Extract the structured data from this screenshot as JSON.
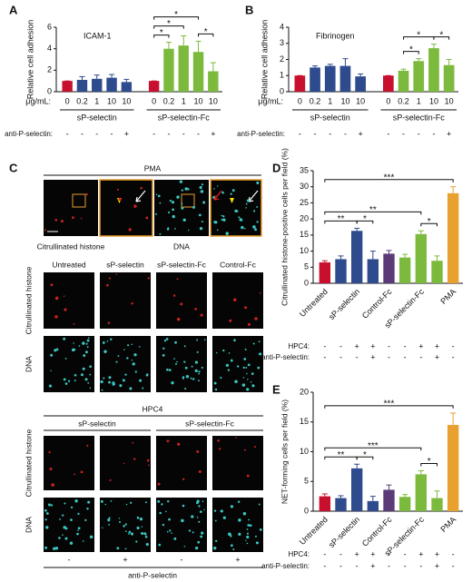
{
  "panel_labels": [
    "A",
    "B",
    "C",
    "D",
    "E"
  ],
  "chart_data": [
    {
      "type": "bar",
      "annotation": "ICAM-1",
      "y_label": "Relative cell adhesion",
      "ylim": [
        0,
        6
      ],
      "yticks": [
        0,
        2,
        4,
        6
      ],
      "category_label": "μg/mL:",
      "categories": [
        "0",
        "0.2",
        "1",
        "10",
        "10",
        "0",
        "0.2",
        "1",
        "10",
        "10"
      ],
      "values": [
        1,
        1.1,
        1.2,
        1.3,
        0.9,
        1,
        4.0,
        4.3,
        3.7,
        1.9
      ],
      "errors": [
        0,
        0.3,
        0.35,
        0.3,
        0.25,
        0,
        0.6,
        0.9,
        1.0,
        0.8
      ],
      "colors": [
        "#c8102e",
        "#2e4b8e",
        "#2e4b8e",
        "#2e4b8e",
        "#2e4b8e",
        "#c8102e",
        "#7cba3d",
        "#7cba3d",
        "#7cba3d",
        "#7cba3d"
      ],
      "groups": [
        {
          "name": "sP-selectin",
          "start": 0,
          "end": 4
        },
        {
          "name": "sP-selectin-Fc",
          "start": 5,
          "end": 9
        }
      ],
      "rows": [
        {
          "label": "anti-P-selectin:",
          "values": [
            "-",
            "-",
            "-",
            "-",
            "+",
            "-",
            "-",
            "-",
            "-",
            "+"
          ]
        }
      ],
      "significance": [
        {
          "label": "*",
          "bars": [
            5,
            6
          ]
        },
        {
          "label": "*",
          "bars": [
            5,
            7
          ]
        },
        {
          "label": "*",
          "bars": [
            5,
            8
          ]
        },
        {
          "label": "*",
          "bars": [
            8,
            9
          ]
        }
      ]
    },
    {
      "type": "bar",
      "annotation": "Fibrinogen",
      "y_label": "Relative cell adhesion",
      "ylim": [
        0,
        4
      ],
      "yticks": [
        0,
        1,
        2,
        3,
        4
      ],
      "category_label": "μg/mL:",
      "categories": [
        "0",
        "0.2",
        "1",
        "10",
        "10",
        "0",
        "0.2",
        "1",
        "10",
        "10"
      ],
      "values": [
        1,
        1.5,
        1.6,
        1.6,
        0.95,
        1,
        1.3,
        1.9,
        2.7,
        1.65
      ],
      "errors": [
        0,
        0.1,
        0.1,
        0.45,
        0.15,
        0,
        0.1,
        0.15,
        0.25,
        0.35
      ],
      "colors": [
        "#c8102e",
        "#2e4b8e",
        "#2e4b8e",
        "#2e4b8e",
        "#2e4b8e",
        "#c8102e",
        "#7cba3d",
        "#7cba3d",
        "#7cba3d",
        "#7cba3d"
      ],
      "groups": [
        {
          "name": "sP-selectin",
          "start": 0,
          "end": 4
        },
        {
          "name": "sP-selectin-Fc",
          "start": 5,
          "end": 9
        }
      ],
      "rows": [
        {
          "label": "anti-P-selectin:",
          "values": [
            "-",
            "-",
            "-",
            "-",
            "+",
            "-",
            "-",
            "-",
            "-",
            "+"
          ]
        }
      ],
      "significance": [
        {
          "label": "*",
          "bars": [
            6,
            7
          ]
        },
        {
          "label": "*",
          "bars": [
            6,
            8
          ]
        },
        {
          "label": "*",
          "bars": [
            8,
            9
          ]
        }
      ]
    },
    {
      "type": "bar",
      "y_label": "Citrullinated histone-positive cells per field (%)",
      "ylim": [
        0,
        35
      ],
      "yticks": [
        0,
        5,
        10,
        15,
        20,
        25,
        30,
        35
      ],
      "categories": [
        "Untreated",
        null,
        "sP-selectin",
        null,
        "Control-Fc",
        null,
        "sP-selectin-Fc",
        null,
        "PMA"
      ],
      "values": [
        6.5,
        7.5,
        16.3,
        7.5,
        9.2,
        8,
        15.3,
        7,
        28
      ],
      "errors": [
        0.5,
        1,
        0.8,
        2.5,
        1,
        1,
        1,
        1.5,
        2
      ],
      "colors": [
        "#c8102e",
        "#2e4b8e",
        "#2e4b8e",
        "#2e4b8e",
        "#5b3a78",
        "#7cba3d",
        "#7cba3d",
        "#7cba3d",
        "#e8a030"
      ],
      "rows": [
        {
          "label": "HPC4:",
          "values": [
            "-",
            "-",
            "+",
            "+",
            "-",
            "-",
            "+",
            "+",
            "-"
          ]
        },
        {
          "label": "anti-P-selectin:",
          "values": [
            "-",
            "-",
            "-",
            "+",
            "-",
            "-",
            "-",
            "+",
            "-"
          ]
        }
      ],
      "significance": [
        {
          "label": "*",
          "bars": [
            2,
            3
          ]
        },
        {
          "label": "**",
          "bars": [
            0,
            2
          ]
        },
        {
          "label": "*",
          "bars": [
            6,
            7
          ]
        },
        {
          "label": "**",
          "bars": [
            0,
            6
          ]
        },
        {
          "label": "***",
          "bars": [
            0,
            8
          ]
        }
      ]
    },
    {
      "type": "bar",
      "y_label": "NET-forming cells per field (%)",
      "ylim": [
        0,
        20
      ],
      "yticks": [
        0,
        5,
        10,
        15,
        20
      ],
      "categories": [
        "Untreated",
        null,
        "sP-selectin",
        null,
        "Control-Fc",
        null,
        "sP-selectin-Fc",
        null,
        "PMA"
      ],
      "values": [
        2.5,
        2.2,
        7.2,
        1.7,
        3.6,
        2.4,
        6.2,
        2.2,
        14.5
      ],
      "errors": [
        0.4,
        0.4,
        0.7,
        0.8,
        0.8,
        0.4,
        0.6,
        1.2,
        2
      ],
      "colors": [
        "#c8102e",
        "#2e4b8e",
        "#2e4b8e",
        "#2e4b8e",
        "#5b3a78",
        "#7cba3d",
        "#7cba3d",
        "#7cba3d",
        "#e8a030"
      ],
      "rows": [
        {
          "label": "HPC4:",
          "values": [
            "-",
            "-",
            "+",
            "+",
            "-",
            "-",
            "+",
            "+",
            "-"
          ]
        },
        {
          "label": "anti-P-selectin:",
          "values": [
            "-",
            "-",
            "-",
            "+",
            "-",
            "-",
            "-",
            "+",
            "-"
          ]
        }
      ],
      "significance": [
        {
          "label": "*",
          "bars": [
            2,
            3
          ]
        },
        {
          "label": "**",
          "bars": [
            0,
            2
          ]
        },
        {
          "label": "*",
          "bars": [
            6,
            7
          ]
        },
        {
          "label": "***",
          "bars": [
            0,
            6
          ]
        },
        {
          "label": "***",
          "bars": [
            0,
            8
          ]
        }
      ]
    }
  ],
  "panel_c": {
    "top_title": "PMA",
    "top_captions": [
      "Citrullinated histone",
      "DNA"
    ],
    "columns": [
      "Untreated",
      "sP-selectin",
      "sP-selectin-Fc",
      "Control-Fc"
    ],
    "row_labels": [
      "Citrullinated histone",
      "DNA"
    ],
    "treatment": "HPC4",
    "groups": [
      "sP-selectin",
      "sP-selectin-Fc"
    ],
    "signs": [
      "-",
      "+",
      "-",
      "+"
    ],
    "bottom_label": "anti-P-selectin"
  }
}
